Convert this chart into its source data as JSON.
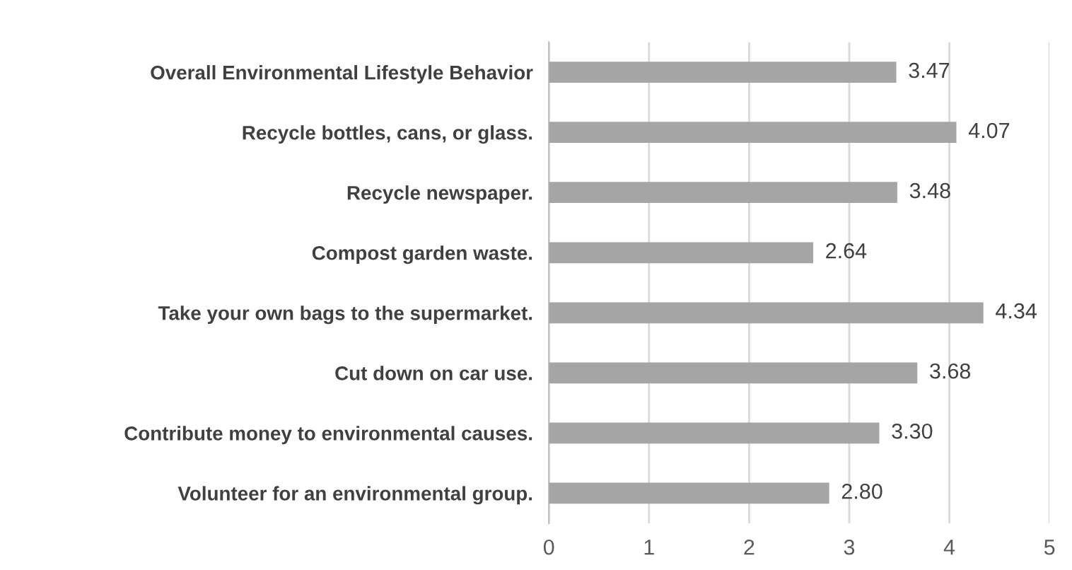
{
  "chart_data": {
    "type": "bar",
    "orientation": "horizontal",
    "categories": [
      "Overall Environmental Lifestyle Behavior",
      "Recycle bottles, cans, or glass.",
      "Recycle newspaper.",
      "Compost garden waste.",
      "Take your own bags to the supermarket.",
      "Cut down on car use.",
      "Contribute money to environmental causes.",
      "Volunteer for an environmental group."
    ],
    "series": [
      {
        "color": "#a5a5a5",
        "values": [
          3.47,
          4.07,
          3.48,
          2.64,
          4.34,
          3.68,
          3.3,
          2.8
        ],
        "value_labels": [
          "3.47",
          "4.07",
          "3.48",
          "2.64",
          "4.34",
          "3.68",
          "3.30",
          "2.80"
        ]
      }
    ],
    "xlim": [
      0,
      5
    ],
    "xticks": [
      0,
      1,
      2,
      3,
      4,
      5
    ],
    "grid": "x"
  }
}
